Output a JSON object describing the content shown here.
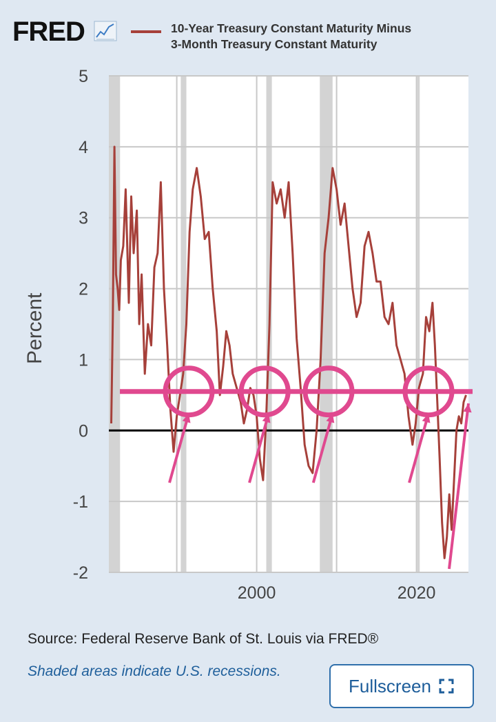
{
  "header": {
    "logo": "FRED",
    "legend_line1": "10-Year Treasury Constant Maturity Minus",
    "legend_line2": "3-Month Treasury Constant Maturity"
  },
  "colors": {
    "series": "#a6403a",
    "annotation": "#e0498f",
    "zero_line": "#000000",
    "recession": "#d3d3d3",
    "background": "#dfe8f2"
  },
  "chart_data": {
    "type": "line",
    "title": "10-Year Treasury Constant Maturity Minus 3-Month Treasury Constant Maturity",
    "ylabel": "Percent",
    "xlabel": "",
    "ylim": [
      -2,
      5
    ],
    "xlim": [
      1981.5,
      2026.5
    ],
    "x_tick_labels": [
      "2000",
      "2020"
    ],
    "x_ticks": [
      2000,
      2020
    ],
    "y_ticks": [
      -2,
      -1,
      0,
      1,
      2,
      3,
      4,
      5
    ],
    "y_tick_labels": [
      "-2",
      "-1",
      "0",
      "1",
      "2",
      "3",
      "4",
      "5"
    ],
    "grid": true,
    "recessions": [
      [
        1981.5,
        1982.9
      ],
      [
        1990.5,
        1991.2
      ],
      [
        2001.2,
        2001.9
      ],
      [
        2007.9,
        2009.5
      ],
      [
        2020.1,
        2020.4
      ]
    ],
    "series": [
      {
        "name": "10-Year Treasury Constant Maturity Minus 3-Month Treasury Constant Maturity",
        "x": [
          1981.8,
          1982.0,
          1982.2,
          1982.4,
          1982.6,
          1982.8,
          1983.0,
          1983.3,
          1983.6,
          1984.0,
          1984.3,
          1984.6,
          1985.0,
          1985.3,
          1985.6,
          1986.0,
          1986.4,
          1986.8,
          1987.2,
          1987.6,
          1988.0,
          1988.4,
          1988.8,
          1989.2,
          1989.6,
          1990.0,
          1990.4,
          1990.8,
          1991.2,
          1991.6,
          1992.0,
          1992.5,
          1993.0,
          1993.5,
          1994.0,
          1994.5,
          1995.0,
          1995.4,
          1995.8,
          1996.2,
          1996.6,
          1997.0,
          1997.5,
          1998.0,
          1998.4,
          1998.8,
          1999.2,
          1999.6,
          2000.0,
          2000.4,
          2000.8,
          2001.2,
          2001.6,
          2002.0,
          2002.5,
          2003.0,
          2003.5,
          2004.0,
          2004.5,
          2005.0,
          2005.5,
          2006.0,
          2006.5,
          2007.0,
          2007.5,
          2008.0,
          2008.5,
          2009.0,
          2009.5,
          2010.0,
          2010.5,
          2011.0,
          2011.5,
          2012.0,
          2012.5,
          2013.0,
          2013.5,
          2014.0,
          2014.5,
          2015.0,
          2015.5,
          2016.0,
          2016.5,
          2017.0,
          2017.5,
          2018.0,
          2018.5,
          2019.0,
          2019.5,
          2019.9,
          2020.3,
          2020.8,
          2021.2,
          2021.6,
          2022.0,
          2022.3,
          2022.6,
          2022.9,
          2023.2,
          2023.5,
          2023.8,
          2024.1,
          2024.4,
          2024.7,
          2025.0,
          2025.3,
          2025.6,
          2025.9,
          2026.2
        ],
        "values": [
          0.1,
          1.6,
          4.0,
          2.2,
          2.0,
          1.7,
          2.4,
          2.6,
          3.4,
          1.8,
          3.3,
          2.5,
          3.1,
          1.5,
          2.2,
          0.8,
          1.5,
          1.2,
          2.3,
          2.5,
          3.5,
          2.0,
          1.2,
          0.3,
          -0.3,
          0.2,
          0.5,
          0.8,
          1.5,
          2.8,
          3.4,
          3.7,
          3.3,
          2.7,
          2.8,
          2.0,
          1.4,
          0.5,
          0.9,
          1.4,
          1.2,
          0.8,
          0.6,
          0.4,
          0.1,
          0.3,
          0.6,
          0.5,
          0.2,
          -0.4,
          -0.7,
          0.2,
          1.5,
          3.5,
          3.2,
          3.4,
          3.0,
          3.5,
          2.5,
          1.3,
          0.6,
          -0.2,
          -0.5,
          -0.6,
          0.0,
          1.0,
          2.5,
          3.0,
          3.7,
          3.4,
          2.9,
          3.2,
          2.6,
          2.0,
          1.6,
          1.8,
          2.6,
          2.8,
          2.5,
          2.1,
          2.1,
          1.6,
          1.5,
          1.8,
          1.2,
          1.0,
          0.8,
          0.2,
          -0.2,
          0.1,
          0.6,
          0.8,
          1.6,
          1.4,
          1.8,
          1.2,
          0.4,
          -0.4,
          -1.3,
          -1.8,
          -1.5,
          -0.9,
          -1.4,
          -0.7,
          0.0,
          0.2,
          0.1,
          0.4,
          0.5
        ]
      }
    ],
    "annotations": {
      "horizontal_line_value": 0.55,
      "circles_at_year": [
        1991.5,
        2001.0,
        2009.0,
        2021.5
      ],
      "arrows_to_year": [
        1991.5,
        2001.5,
        2009.5,
        2021.5,
        2026.5
      ]
    }
  },
  "footer": {
    "source": "Source: Federal Reserve Bank of St. Louis via FRED®",
    "recession_note": "Shaded areas indicate U.S. recessions.",
    "fullscreen_label": "Fullscreen"
  }
}
